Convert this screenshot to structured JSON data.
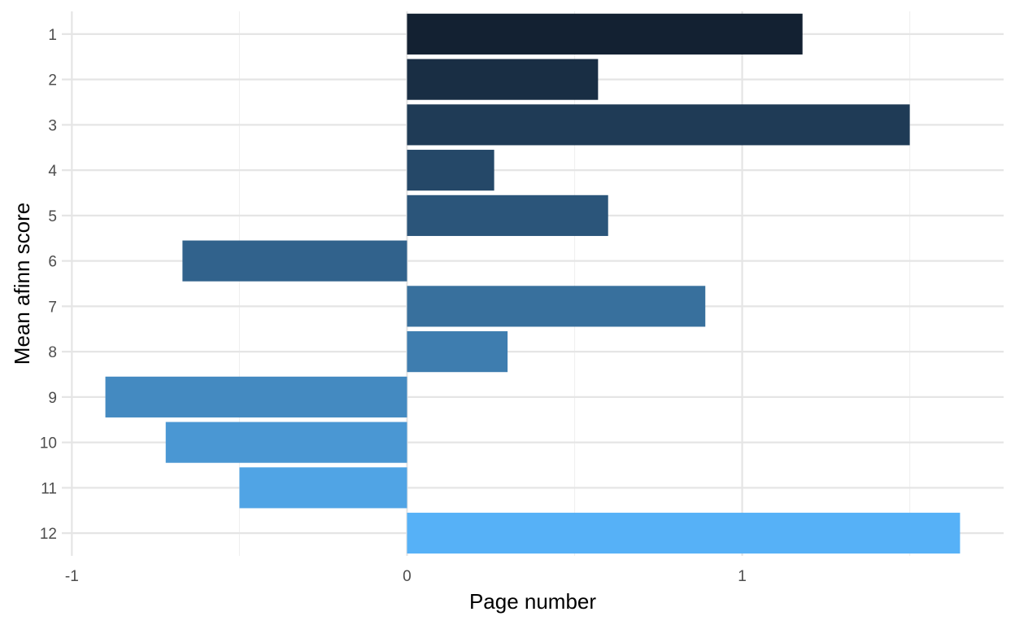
{
  "chart_data": {
    "type": "bar",
    "orientation": "horizontal",
    "title": "",
    "xlabel": "Page number",
    "ylabel": "Mean afinn score",
    "categories": [
      "1",
      "2",
      "3",
      "4",
      "5",
      "6",
      "7",
      "8",
      "9",
      "10",
      "11",
      "12"
    ],
    "values": [
      1.18,
      0.57,
      1.5,
      0.26,
      0.6,
      -0.67,
      0.89,
      0.3,
      -0.9,
      -0.72,
      -0.5,
      1.65
    ],
    "xlim": [
      -1.03,
      1.78
    ],
    "xticks": [
      -1,
      0,
      1
    ],
    "xtick_labels": [
      "-1",
      "0",
      "1"
    ],
    "grid": true,
    "legend": "none",
    "fill_gradient": {
      "low": "#132132",
      "high": "#56B1F7"
    }
  }
}
